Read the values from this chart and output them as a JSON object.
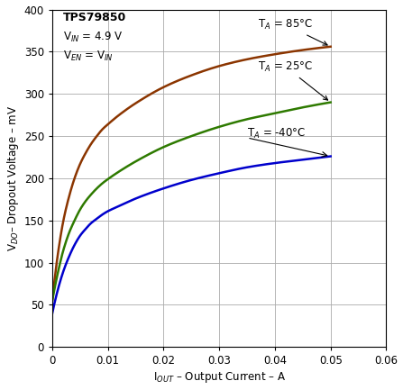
{
  "xlabel": "I$_{OUT}$ – Output Current – A",
  "ylabel": "V$_{DO}$– Dropout Voltage – mV",
  "xlim": [
    0,
    0.06
  ],
  "ylim": [
    0,
    400
  ],
  "xticks": [
    0,
    0.01,
    0.02,
    0.03,
    0.04,
    0.05,
    0.06
  ],
  "yticks": [
    0,
    50,
    100,
    150,
    200,
    250,
    300,
    350,
    400
  ],
  "curve_85_color": "#8B3500",
  "curve_25_color": "#2E7A00",
  "curve_n40_color": "#0000CC",
  "label_85": "T$_A$ = 85°C",
  "label_25": "T$_A$ = 25°C",
  "label_n40": "T$_A$ = -40°C",
  "grid_color": "#aaaaaa",
  "bg_color": "#ffffff",
  "annotation_text": "TPS79850",
  "vin_text": "V$_{IN}$ = 4.9 V",
  "ven_text": "V$_{EN}$ = V$_{IN}$",
  "curve_85_x": [
    0.0,
    0.001,
    0.002,
    0.003,
    0.004,
    0.005,
    0.006,
    0.007,
    0.008,
    0.009,
    0.01,
    0.012,
    0.015,
    0.02,
    0.025,
    0.03,
    0.035,
    0.04,
    0.045,
    0.05
  ],
  "curve_85_y": [
    55,
    110,
    150,
    178,
    200,
    217,
    230,
    241,
    250,
    258,
    264,
    275,
    289,
    308,
    322,
    333,
    341,
    347,
    352,
    356
  ],
  "curve_25_x": [
    0.0,
    0.001,
    0.002,
    0.003,
    0.004,
    0.005,
    0.006,
    0.007,
    0.008,
    0.009,
    0.01,
    0.012,
    0.015,
    0.02,
    0.025,
    0.03,
    0.035,
    0.04,
    0.045,
    0.05
  ],
  "curve_25_y": [
    55,
    88,
    115,
    135,
    150,
    163,
    173,
    181,
    188,
    194,
    199,
    208,
    220,
    237,
    250,
    261,
    270,
    277,
    284,
    290
  ],
  "curve_n40_x": [
    0.0,
    0.001,
    0.002,
    0.003,
    0.004,
    0.005,
    0.006,
    0.007,
    0.008,
    0.009,
    0.01,
    0.012,
    0.015,
    0.02,
    0.025,
    0.03,
    0.035,
    0.04,
    0.045,
    0.05
  ],
  "curve_n40_y": [
    40,
    68,
    90,
    107,
    121,
    132,
    140,
    147,
    152,
    157,
    161,
    167,
    176,
    188,
    198,
    206,
    213,
    218,
    222,
    226
  ]
}
